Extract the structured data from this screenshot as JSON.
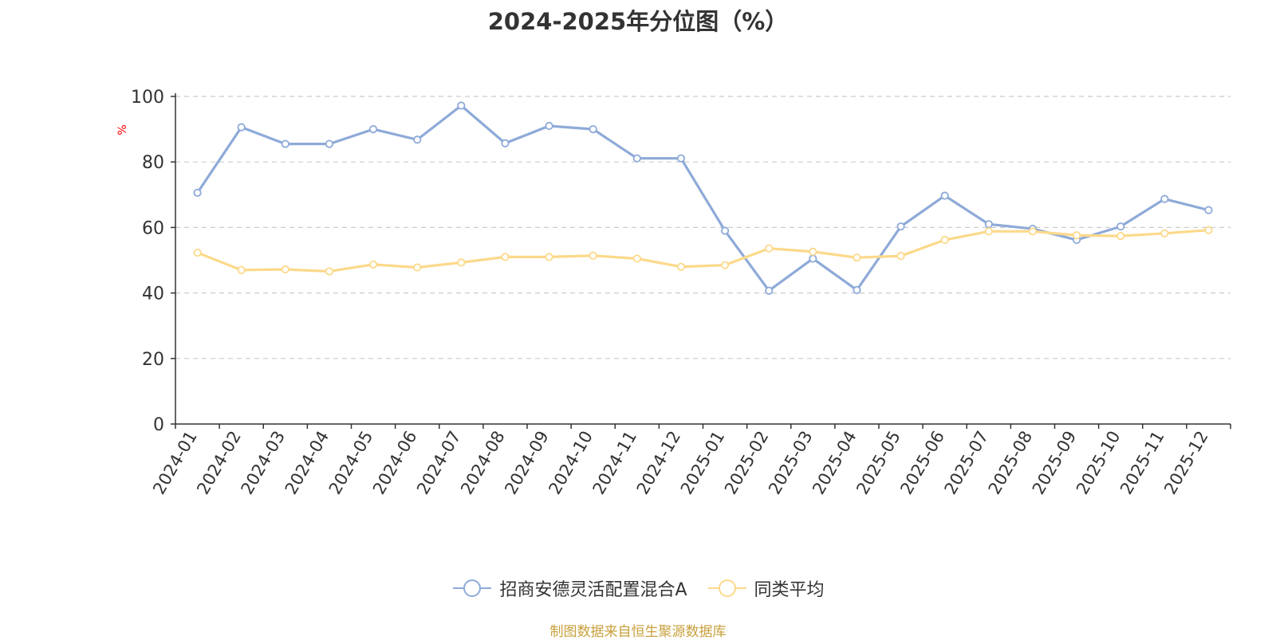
{
  "chart_data": {
    "type": "line",
    "title": "2024-2025年分位图（%）",
    "ylabel": "%",
    "ylim": [
      0,
      100
    ],
    "yticks": [
      0,
      20,
      40,
      60,
      80,
      100
    ],
    "grid": true,
    "legend_position": "bottom",
    "categories": [
      "2024-01",
      "2024-02",
      "2024-03",
      "2024-04",
      "2024-05",
      "2024-06",
      "2024-07",
      "2024-08",
      "2024-09",
      "2024-10",
      "2024-11",
      "2024-12",
      "2025-01",
      "2025-02",
      "2025-03",
      "2025-04",
      "2025-05",
      "2025-06",
      "2025-07",
      "2025-08",
      "2025-09",
      "2025-10",
      "2025-11",
      "2025-12"
    ],
    "series": [
      {
        "name": "招商安德灵活配置混合A",
        "color": "#8eaad8",
        "values": [
          70.6,
          90.6,
          85.5,
          85.5,
          90.0,
          86.8,
          97.2,
          85.7,
          91.0,
          90.0,
          81.1,
          81.1,
          59.0,
          40.7,
          50.5,
          40.9,
          60.3,
          69.7,
          61.0,
          59.6,
          56.2,
          60.3,
          68.7,
          65.3
        ]
      },
      {
        "name": "同类平均",
        "color": "#fcd98a",
        "values": [
          52.3,
          47.0,
          47.2,
          46.6,
          48.7,
          47.8,
          49.3,
          51.0,
          51.0,
          51.4,
          50.5,
          48.0,
          48.5,
          53.6,
          52.6,
          50.8,
          51.3,
          56.2,
          58.8,
          58.8,
          57.6,
          57.4,
          58.2,
          59.2
        ]
      }
    ]
  },
  "legend": {
    "items": [
      "招商安德灵活配置混合A",
      "同类平均"
    ]
  },
  "footer": {
    "source": "制图数据来自恒生聚源数据库"
  }
}
